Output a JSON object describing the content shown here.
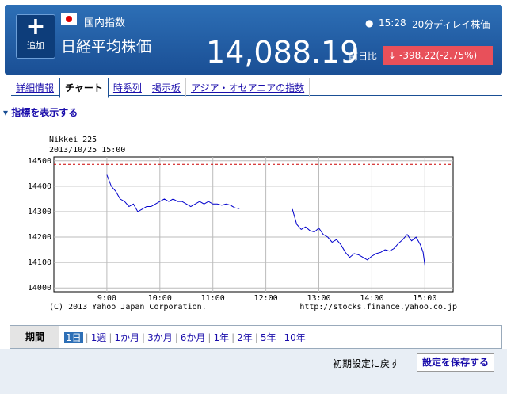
{
  "header": {
    "add_button": "追加",
    "category": "国内指数",
    "name": "日経平均株価",
    "time": "15:28",
    "delay": "20分ディレイ株価",
    "price": "14,088.19",
    "change_label": "前日比",
    "change": "-398.22(-2.75%)"
  },
  "tabs": [
    "詳細情報",
    "チャート",
    "時系列",
    "掲示板",
    "アジア・オセアニアの指数"
  ],
  "indicator_link": "指標を表示する",
  "chart_data": {
    "type": "line",
    "title": "Nikkei 225",
    "subtitle": "2013/10/25 15:00",
    "copyright": "(C) 2013 Yahoo Japan Corporation.",
    "source": "http://stocks.finance.yahoo.co.jp",
    "x": [
      "9:00",
      "9:05",
      "9:10",
      "9:15",
      "9:20",
      "9:25",
      "9:30",
      "9:35",
      "9:40",
      "9:45",
      "9:50",
      "9:55",
      "10:00",
      "10:05",
      "10:10",
      "10:15",
      "10:20",
      "10:25",
      "10:30",
      "10:35",
      "10:40",
      "10:45",
      "10:50",
      "10:55",
      "11:00",
      "11:05",
      "11:10",
      "11:15",
      "11:20",
      "11:25",
      "11:30",
      "12:00",
      "12:30",
      "12:35",
      "12:40",
      "12:45",
      "12:50",
      "12:55",
      "13:00",
      "13:05",
      "13:10",
      "13:15",
      "13:20",
      "13:25",
      "13:30",
      "13:35",
      "13:40",
      "13:45",
      "13:50",
      "13:55",
      "14:00",
      "14:05",
      "14:10",
      "14:15",
      "14:20",
      "14:25",
      "14:30",
      "14:35",
      "14:40",
      "14:45",
      "14:50",
      "14:55",
      "14:58",
      "15:00"
    ],
    "values": [
      14445,
      14400,
      14380,
      14350,
      14340,
      14320,
      14330,
      14300,
      14310,
      14320,
      14320,
      14330,
      14340,
      14350,
      14340,
      14350,
      14340,
      14340,
      14330,
      14320,
      14330,
      14340,
      14330,
      14340,
      14330,
      14330,
      14325,
      14330,
      14325,
      14315,
      14312,
      null,
      14310,
      14250,
      14230,
      14240,
      14225,
      14220,
      14235,
      14210,
      14200,
      14180,
      14190,
      14170,
      14140,
      14120,
      14135,
      14130,
      14120,
      14110,
      14125,
      14135,
      14140,
      14150,
      14145,
      14155,
      14175,
      14190,
      14210,
      14185,
      14200,
      14170,
      14140,
      14090
    ],
    "color": "#0000cc",
    "reference_line": 14486,
    "reference_color": "#cc0000",
    "xlim": [
      "8:00",
      "15:32"
    ],
    "xticks": [
      "9:00",
      "10:00",
      "11:00",
      "12:00",
      "13:00",
      "14:00",
      "15:00"
    ],
    "ylim": [
      13985,
      14515
    ],
    "yticks": [
      14000,
      14100,
      14200,
      14300,
      14400,
      14500
    ],
    "grid": true
  },
  "period": {
    "label": "期間",
    "options": [
      "1日",
      "1週",
      "1か月",
      "3か月",
      "6か月",
      "1年",
      "2年",
      "5年",
      "10年"
    ],
    "selected": 0
  },
  "footer": {
    "reset": "初期設定に戻す",
    "save": "設定を保存する"
  }
}
